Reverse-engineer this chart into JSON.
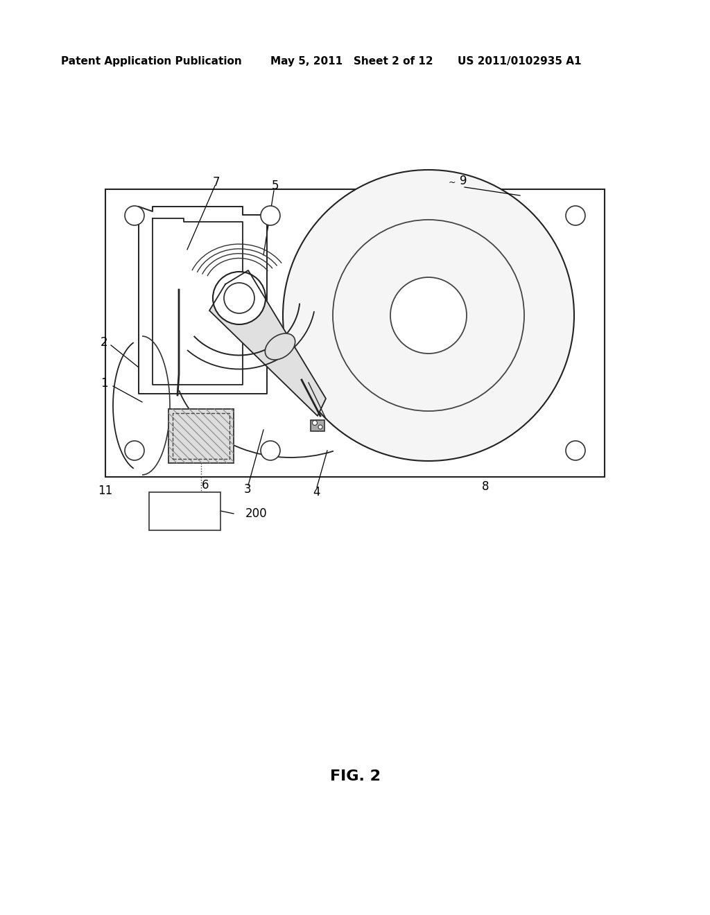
{
  "bg_color": "#ffffff",
  "header_left": "Patent Application Publication",
  "header_mid": "May 5, 2011   Sheet 2 of 12",
  "header_right": "US 2011/0102935 A1",
  "figure_label": "FIG. 2"
}
